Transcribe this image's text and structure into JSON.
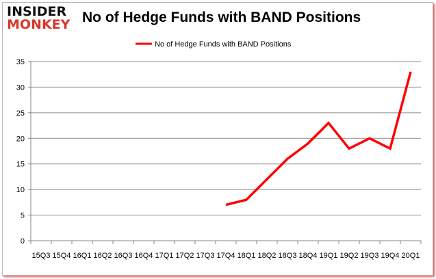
{
  "logo": {
    "line1": "INSIDER",
    "line2": "MONKEY"
  },
  "chart_data": {
    "type": "line",
    "title": "No of Hedge Funds with BAND Positions",
    "xlabel": "",
    "ylabel": "",
    "categories": [
      "15Q3",
      "15Q4",
      "16Q1",
      "16Q2",
      "16Q3",
      "16Q4",
      "17Q1",
      "17Q2",
      "17Q3",
      "17Q4",
      "18Q1",
      "18Q2",
      "18Q3",
      "18Q4",
      "19Q1",
      "19Q2",
      "19Q3",
      "19Q4",
      "20Q1"
    ],
    "series": [
      {
        "name": "No of Hedge Funds with BAND Positions",
        "color": "#ff0000",
        "values": [
          null,
          null,
          null,
          null,
          null,
          null,
          null,
          null,
          null,
          7,
          8,
          12,
          16,
          19,
          23,
          18,
          20,
          18,
          33
        ]
      }
    ],
    "ylim": [
      0,
      35
    ],
    "yticks": [
      0,
      5,
      10,
      15,
      20,
      25,
      30,
      35
    ],
    "grid": true,
    "legend": "top-center"
  }
}
